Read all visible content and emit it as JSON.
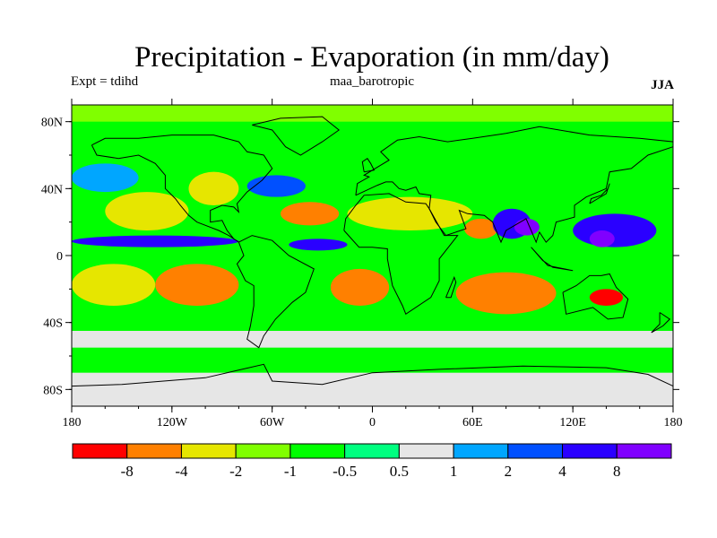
{
  "chart_data": {
    "type": "heatmap",
    "title": "Precipitation - Evaporation (in mm/day)",
    "subtitle_left": "Expt = tdihd",
    "subtitle_center": "maa_barotropic",
    "subtitle_right": "JJA",
    "x_axis": {
      "range": [
        -180,
        180
      ],
      "ticks": [
        {
          "value": -180,
          "label": "180"
        },
        {
          "value": -120,
          "label": "120W"
        },
        {
          "value": -60,
          "label": "60W"
        },
        {
          "value": 0,
          "label": "0"
        },
        {
          "value": 60,
          "label": "60E"
        },
        {
          "value": 120,
          "label": "120E"
        },
        {
          "value": 180,
          "label": "180"
        }
      ]
    },
    "y_axis": {
      "range": [
        -90,
        90
      ],
      "ticks": [
        {
          "value": 80,
          "label": "80N"
        },
        {
          "value": 40,
          "label": "40N"
        },
        {
          "value": 0,
          "label": "0"
        },
        {
          "value": -40,
          "label": "40S"
        },
        {
          "value": -80,
          "label": "80S"
        }
      ]
    },
    "colorbar": {
      "levels": [
        -8,
        -4,
        -2,
        -1,
        -0.5,
        0.5,
        1,
        2,
        4,
        8
      ],
      "labels": [
        "-8",
        "-4",
        "-2",
        "-1",
        "-0.5",
        "0.5",
        "1",
        "2",
        "4",
        "8"
      ],
      "colors": [
        "#ff0000",
        "#ff8000",
        "#e6e600",
        "#80ff00",
        "#00ff00",
        "#00ff80",
        "#e6e6e6",
        "#00a6ff",
        "#0050ff",
        "#2a00ff",
        "#8000ff"
      ]
    },
    "background_value_class": 4,
    "regions": [
      {
        "name": "arctic-band",
        "class": 3,
        "lon": [
          -180,
          180
        ],
        "lat": [
          80,
          90
        ]
      },
      {
        "name": "n-pacific-storm-track",
        "class": 7,
        "lon": [
          -180,
          -140
        ],
        "lat": [
          38,
          55
        ]
      },
      {
        "name": "n-pacific-subtropical",
        "class": 2,
        "lon": [
          -160,
          -110
        ],
        "lat": [
          15,
          38
        ]
      },
      {
        "name": "n-america-interior",
        "class": 2,
        "lon": [
          -110,
          -80
        ],
        "lat": [
          30,
          50
        ]
      },
      {
        "name": "gulf-stream",
        "class": 8,
        "lon": [
          -75,
          -40
        ],
        "lat": [
          35,
          48
        ]
      },
      {
        "name": "n-atlantic-subtropical",
        "class": 1,
        "lon": [
          -55,
          -20
        ],
        "lat": [
          18,
          32
        ]
      },
      {
        "name": "sahara-middle-east",
        "class": 2,
        "lon": [
          -15,
          60
        ],
        "lat": [
          15,
          35
        ]
      },
      {
        "name": "arabian-sea",
        "class": 1,
        "lon": [
          55,
          75
        ],
        "lat": [
          10,
          22
        ]
      },
      {
        "name": "indian-monsoon",
        "class": 9,
        "lon": [
          72,
          95
        ],
        "lat": [
          10,
          28
        ]
      },
      {
        "name": "bay-of-bengal",
        "class": 10,
        "lon": [
          85,
          100
        ],
        "lat": [
          12,
          22
        ]
      },
      {
        "name": "w-pacific-warm-pool",
        "class": 9,
        "lon": [
          120,
          170
        ],
        "lat": [
          5,
          25
        ]
      },
      {
        "name": "philippine-sea-max",
        "class": 10,
        "lon": [
          130,
          145
        ],
        "lat": [
          5,
          15
        ]
      },
      {
        "name": "pacific-itcz",
        "class": 9,
        "lon": [
          -180,
          -80
        ],
        "lat": [
          5,
          12
        ]
      },
      {
        "name": "atlantic-itcz",
        "class": 9,
        "lon": [
          -50,
          -15
        ],
        "lat": [
          3,
          10
        ]
      },
      {
        "name": "se-pacific-dry",
        "class": 1,
        "lon": [
          -130,
          -80
        ],
        "lat": [
          -30,
          -5
        ]
      },
      {
        "name": "s-pacific-subtropical",
        "class": 2,
        "lon": [
          -180,
          -130
        ],
        "lat": [
          -30,
          -5
        ]
      },
      {
        "name": "s-atlantic-dry",
        "class": 1,
        "lon": [
          -25,
          10
        ],
        "lat": [
          -30,
          -8
        ]
      },
      {
        "name": "s-indian-dry",
        "class": 1,
        "lon": [
          50,
          110
        ],
        "lat": [
          -35,
          -10
        ]
      },
      {
        "name": "australia-east-max",
        "class": 0,
        "lon": [
          130,
          150
        ],
        "lat": [
          -30,
          -20
        ]
      },
      {
        "name": "southern-ocean",
        "class": 6,
        "lon": [
          -180,
          180
        ],
        "lat": [
          -55,
          -45
        ]
      },
      {
        "name": "antarctica",
        "class": 6,
        "lon": [
          -180,
          180
        ],
        "lat": [
          -90,
          -70
        ]
      }
    ]
  }
}
